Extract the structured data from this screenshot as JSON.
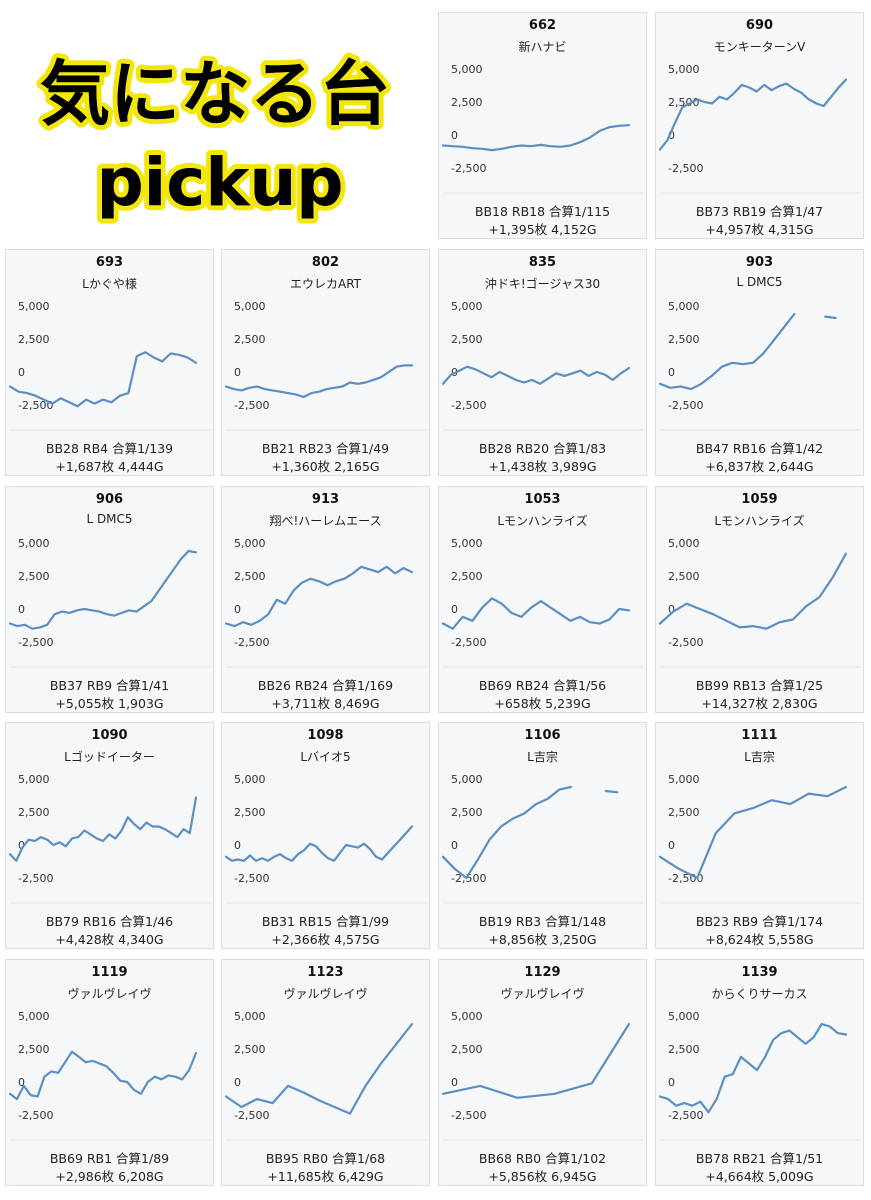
{
  "header": {
    "title": "気になる台",
    "subtitle": "pickup"
  },
  "colors": {
    "line": "#5b8fc4",
    "card_bg": "#f6f7f9",
    "title_outline": "#f2e60a"
  },
  "chart_data": [
    {
      "type": "line",
      "number": "662",
      "name": "新ハナビ",
      "ylim": [
        -3500,
        5000
      ],
      "yticks": [
        "5,000",
        "2,500",
        "0",
        "-2,500"
      ],
      "y": [
        -200,
        -250,
        -300,
        -400,
        -450,
        -550,
        -450,
        -300,
        -200,
        -250,
        -150,
        -250,
        -300,
        -200,
        50,
        400,
        900,
        1200,
        1300,
        1350
      ],
      "stats1": "BB18 RB18 合算1/115",
      "stats2": "+1,395枚 4,152G"
    },
    {
      "type": "line",
      "number": "690",
      "name": "モンキーターンV",
      "ylim": [
        -3500,
        5000
      ],
      "yticks": [
        "5,000",
        "2,500",
        "0",
        "-2,500"
      ],
      "y": [
        -500,
        200,
        1500,
        2700,
        3000,
        3300,
        3100,
        3000,
        3500,
        3300,
        3800,
        4400,
        4200,
        3900,
        4400,
        4000,
        4300,
        4500,
        4100,
        3800,
        3300,
        3000,
        2800,
        3500,
        4200,
        4800
      ],
      "stats1": "BB73 RB19 合算1/47",
      "stats2": "+4,957枚 4,315G"
    },
    {
      "type": "line",
      "number": "693",
      "name": "Lかぐや様",
      "ylim": [
        -3500,
        5000
      ],
      "yticks": [
        "5,000",
        "2,500",
        "0",
        "-2,500"
      ],
      "y": [
        -500,
        -900,
        -1000,
        -1200,
        -1500,
        -1800,
        -1400,
        -1700,
        -2000,
        -1500,
        -1800,
        -1500,
        -1700,
        -1200,
        -1000,
        1800,
        2100,
        1700,
        1400,
        2000,
        1900,
        1700,
        1300
      ],
      "stats1": "BB28 RB4 合算1/139",
      "stats2": "+1,687枚 4,444G"
    },
    {
      "type": "line",
      "number": "802",
      "name": "エウレカART",
      "ylim": [
        -3500,
        5000
      ],
      "yticks": [
        "5,000",
        "2,500",
        "0",
        "-2,500"
      ],
      "y": [
        -500,
        -700,
        -800,
        -600,
        -500,
        -700,
        -800,
        -900,
        -1000,
        -1100,
        -1300,
        -1000,
        -900,
        -700,
        -600,
        -500,
        -200,
        -300,
        -200,
        0,
        200,
        600,
        1000,
        1100,
        1100
      ],
      "stats1": "BB21 RB23 合算1/49",
      "stats2": "+1,360枚 2,165G"
    },
    {
      "type": "line",
      "number": "835",
      "name": "沖ドキ!ゴージャス30",
      "ylim": [
        -3500,
        5000
      ],
      "yticks": [
        "5,000",
        "2,500",
        "0",
        "-2,500"
      ],
      "y": [
        -300,
        400,
        700,
        1000,
        800,
        500,
        200,
        600,
        300,
        0,
        -200,
        0,
        -300,
        100,
        500,
        300,
        500,
        700,
        300,
        600,
        400,
        0,
        500,
        900
      ],
      "stats1": "BB28 RB20 合算1/83",
      "stats2": "+1,438枚 3,989G"
    },
    {
      "type": "line",
      "number": "903",
      "name": "L DMC5",
      "ylim": [
        -3500,
        5000
      ],
      "yticks": [
        "5,000",
        "2,500",
        "0",
        "-2,500"
      ],
      "y": [
        -300,
        -600,
        -500,
        -700,
        -300,
        300,
        1000,
        1300,
        1200,
        1300,
        2000,
        3000,
        4000,
        5000
      ],
      "segments": [
        {
          "y": [
            4800,
            4700
          ]
        }
      ],
      "stats1": "BB47 RB16 合算1/42",
      "stats2": "+6,837枚 2,644G"
    },
    {
      "type": "line",
      "number": "906",
      "name": "L DMC5",
      "ylim": [
        -3500,
        5000
      ],
      "yticks": [
        "5,000",
        "2,500",
        "0",
        "-2,500"
      ],
      "y": [
        -500,
        -700,
        -600,
        -900,
        -800,
        -600,
        200,
        400,
        300,
        500,
        600,
        500,
        400,
        200,
        100,
        300,
        500,
        400,
        800,
        1200,
        2000,
        2800,
        3600,
        4400,
        5000,
        4900
      ],
      "stats1": "BB37 RB9 合算1/41",
      "stats2": "+5,055枚 1,903G"
    },
    {
      "type": "line",
      "number": "913",
      "name": "翔べ!ハーレムエース",
      "ylim": [
        -3500,
        5000
      ],
      "yticks": [
        "5,000",
        "2,500",
        "0",
        "-2,500"
      ],
      "y": [
        -500,
        -700,
        -400,
        -600,
        -300,
        200,
        1300,
        1000,
        2000,
        2600,
        2900,
        2700,
        2400,
        2700,
        2900,
        3300,
        3800,
        3600,
        3400,
        3800,
        3300,
        3700,
        3400
      ],
      "stats1": "BB26 RB24 合算1/169",
      "stats2": "+3,711枚 8,469G"
    },
    {
      "type": "line",
      "number": "1053",
      "name": "Lモンハンライズ",
      "ylim": [
        -3500,
        5000
      ],
      "yticks": [
        "5,000",
        "2,500",
        "0",
        "-2,500"
      ],
      "y": [
        -500,
        -900,
        0,
        -300,
        700,
        1400,
        1000,
        300,
        0,
        700,
        1200,
        700,
        200,
        -300,
        0,
        -400,
        -500,
        -200,
        600,
        500
      ],
      "stats1": "BB69 RB24 合算1/56",
      "stats2": "+658枚 5,239G"
    },
    {
      "type": "line",
      "number": "1059",
      "name": "Lモンハンライズ",
      "ylim": [
        -3500,
        5000
      ],
      "yticks": [
        "5,000",
        "2,500",
        "0",
        "-2,500"
      ],
      "y": [
        -500,
        400,
        1000,
        600,
        200,
        -300,
        -800,
        -700,
        -900,
        -400,
        -200,
        800,
        1500,
        3000,
        4800
      ],
      "stats1": "BB99 RB13 合算1/25",
      "stats2": "+14,327枚 2,830G"
    },
    {
      "type": "line",
      "number": "1090",
      "name": "Lゴッドイーター",
      "ylim": [
        -3500,
        5000
      ],
      "yticks": [
        "5,000",
        "2,500",
        "0",
        "-2,500"
      ],
      "y": [
        -100,
        -600,
        400,
        1000,
        900,
        1200,
        1000,
        600,
        800,
        500,
        1100,
        1200,
        1700,
        1400,
        1100,
        900,
        1400,
        1100,
        1700,
        2700,
        2200,
        1800,
        2300,
        2000,
        2000,
        1800,
        1500,
        1200,
        1800,
        1500,
        4200
      ],
      "stats1": "BB79 RB16 合算1/46",
      "stats2": "+4,428枚 4,340G"
    },
    {
      "type": "line",
      "number": "1098",
      "name": "Lバイオ5",
      "ylim": [
        -3500,
        5000
      ],
      "yticks": [
        "5,000",
        "2,500",
        "0",
        "-2,500"
      ],
      "y": [
        -300,
        -600,
        -500,
        -600,
        -200,
        -600,
        -400,
        -600,
        -300,
        -100,
        -400,
        -600,
        -100,
        200,
        700,
        500,
        0,
        -400,
        -600,
        0,
        600,
        500,
        400,
        700,
        300,
        -300,
        -500,
        0,
        500,
        1000,
        1500,
        2000
      ],
      "stats1": "BB31 RB15 合算1/99",
      "stats2": "+2,366枚 4,575G"
    },
    {
      "type": "line",
      "number": "1106",
      "name": "L吉宗",
      "ylim": [
        -3500,
        5000
      ],
      "yticks": [
        "5,000",
        "2,500",
        "0",
        "-2,500"
      ],
      "y": [
        -300,
        -1200,
        -1900,
        -500,
        1000,
        2000,
        2600,
        3000,
        3700,
        4100,
        4800,
        5000
      ],
      "segments": [
        {
          "y": [
            4700,
            4600
          ]
        }
      ],
      "stats1": "BB19 RB3 合算1/148",
      "stats2": "+8,856枚 3,250G"
    },
    {
      "type": "line",
      "number": "1111",
      "name": "L吉宗",
      "ylim": [
        -3500,
        5000
      ],
      "yticks": [
        "5,000",
        "2,500",
        "0",
        "-2,500"
      ],
      "y": [
        -300,
        -1200,
        -1900,
        1500,
        3000,
        3400,
        4000,
        3700,
        4500,
        4300,
        5000
      ],
      "stats1": "BB23 RB9 合算1/174",
      "stats2": "+8,624枚 5,558G"
    },
    {
      "type": "line",
      "number": "1119",
      "name": "ヴァルヴレイヴ",
      "ylim": [
        -3500,
        5000
      ],
      "yticks": [
        "5,000",
        "2,500",
        "0",
        "-2,500"
      ],
      "y": [
        -300,
        -700,
        300,
        -400,
        -500,
        1000,
        1400,
        1300,
        2100,
        2900,
        2500,
        2100,
        2200,
        2000,
        1800,
        1300,
        700,
        600,
        0,
        -300,
        600,
        1000,
        800,
        1100,
        1000,
        800,
        1500,
        2800
      ],
      "stats1": "BB69 RB1 合算1/89",
      "stats2": "+2,986枚 6,208G"
    },
    {
      "type": "line",
      "number": "1123",
      "name": "ヴァルヴレイヴ",
      "ylim": [
        -3500,
        5000
      ],
      "yticks": [
        "5,000",
        "2,500",
        "0",
        "-2,500"
      ],
      "y": [
        -500,
        -1300,
        -700,
        -1000,
        300,
        -200,
        -800,
        -1300,
        -1800,
        300,
        2000,
        3500,
        5000
      ],
      "stats1": "BB95 RB0 合算1/68",
      "stats2": "+11,685枚 6,429G"
    },
    {
      "type": "line",
      "number": "1129",
      "name": "ヴァルヴレイヴ",
      "ylim": [
        -3500,
        5000
      ],
      "yticks": [
        "5,000",
        "2,500",
        "0",
        "-2,500"
      ],
      "y": [
        -300,
        300,
        -600,
        -300,
        500,
        5000
      ],
      "stats1": "BB68 RB0 合算1/102",
      "stats2": "+5,856枚 6,945G"
    },
    {
      "type": "line",
      "number": "1139",
      "name": "からくりサーカス",
      "ylim": [
        -3500,
        5000
      ],
      "yticks": [
        "5,000",
        "2,500",
        "0",
        "-2,500"
      ],
      "y": [
        -500,
        -700,
        -1200,
        -1000,
        -1200,
        -900,
        -1700,
        -700,
        1000,
        1200,
        2500,
        2000,
        1500,
        2500,
        3800,
        4300,
        4500,
        4000,
        3500,
        4000,
        5000,
        4800,
        4300,
        4200
      ],
      "stats1": "BB78 RB21 合算1/51",
      "stats2": "+4,664枚 5,009G"
    }
  ]
}
